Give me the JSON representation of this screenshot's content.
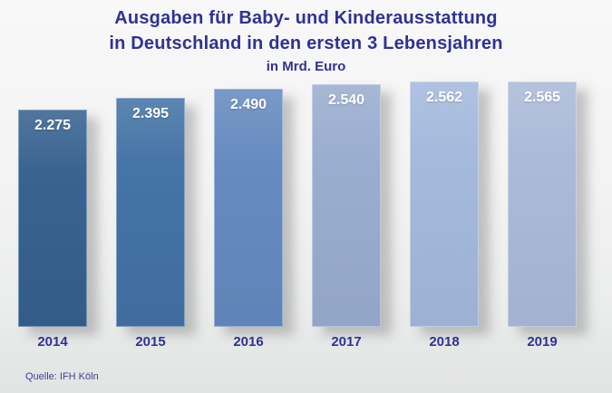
{
  "title": {
    "line1": "Ausgaben für Baby- und Kinderausstattung",
    "line2": "in Deutschland in den ersten 3 Lebensjahren",
    "line3": "in Mrd. Euro"
  },
  "source": "Quelle: IFH Köln",
  "colors": {
    "title_text": "#2F3293",
    "axis_text": "#2F3293",
    "source_text": "#3C3F96",
    "value_label_text": "#FFFFFF",
    "background_top": "#F8F8F8",
    "background_bottom": "#E2E3E3"
  },
  "chart_data": {
    "type": "bar",
    "title": "Ausgaben für Baby- und Kinderausstattung in Deutschland in den ersten 3 Lebensjahren",
    "subtitle": "in Mrd. Euro",
    "categories": [
      "2014",
      "2015",
      "2016",
      "2017",
      "2018",
      "2019"
    ],
    "values": [
      2.275,
      2.395,
      2.49,
      2.54,
      2.562,
      2.565
    ],
    "value_labels": [
      "2.275",
      "2.395",
      "2.490",
      "2.540",
      "2.562",
      "2.565"
    ],
    "bar_colors": [
      "#35608E",
      "#4271A4",
      "#6489BE",
      "#98ACCF",
      "#A3B8DC",
      "#A9B9D8"
    ],
    "xlabel": "",
    "ylabel": "Mrd. Euro",
    "ylim": [
      0,
      2.565
    ],
    "grid": false,
    "legend": false,
    "value_labels_position": "inside-top",
    "source": "Quelle: IFH Köln"
  }
}
